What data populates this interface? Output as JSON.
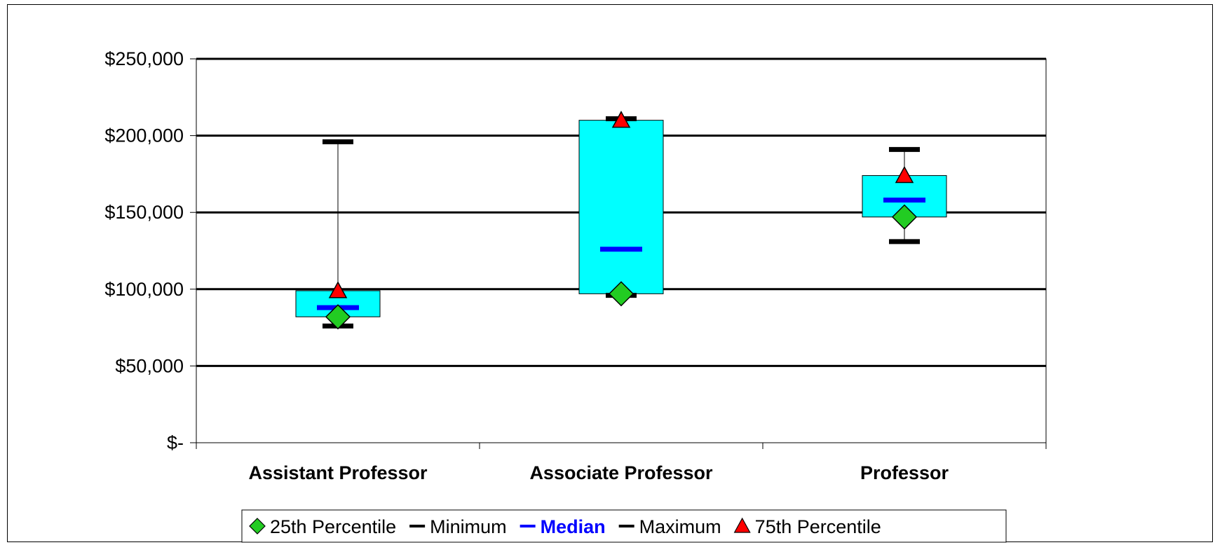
{
  "chart_data": {
    "type": "box",
    "categories": [
      "Assistant Professor",
      "Associate Professor",
      "Professor"
    ],
    "y_tick_labels": [
      "$-",
      "$50,000",
      "$100,000",
      "$150,000",
      "$200,000",
      "$250,000"
    ],
    "y_ticks": [
      0,
      50000,
      100000,
      150000,
      200000,
      250000
    ],
    "ylim": [
      0,
      250000
    ],
    "grid": true,
    "legend_position": "bottom",
    "series": [
      {
        "name": "25th Percentile",
        "values": [
          82000,
          97000,
          147000
        ],
        "marker": "diamond",
        "color": "#22cc22"
      },
      {
        "name": "Minimum",
        "values": [
          76000,
          96000,
          131000
        ],
        "marker": "dash",
        "color": "#000000"
      },
      {
        "name": "Median",
        "values": [
          88000,
          126000,
          158000
        ],
        "marker": "dash",
        "color": "#0000ff"
      },
      {
        "name": "Maximum",
        "values": [
          196000,
          211000,
          191000
        ],
        "marker": "dash",
        "color": "#000000"
      },
      {
        "name": "75th Percentile",
        "values": [
          99000,
          210000,
          174000
        ],
        "marker": "triangle",
        "color": "#ff0000"
      }
    ],
    "box_color": "#00ffff"
  }
}
